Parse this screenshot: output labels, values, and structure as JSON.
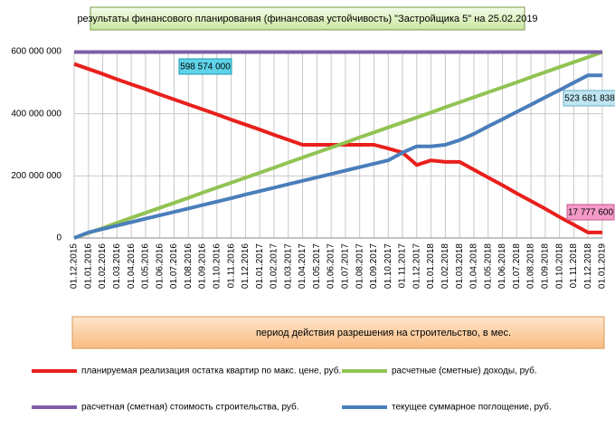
{
  "chart_data": {
    "type": "line",
    "title": "результаты финансового планирования  (финансовая устойчивость) \"Застройщика  5\" на 25.02.2019",
    "x_label": "период  действия разрешения на строительство, в мес.",
    "categories": [
      "01.12.2015",
      "01.01.2016",
      "01.02.2016",
      "01.03.2016",
      "01.04.2016",
      "01.05.2016",
      "01.06.2016",
      "01.07.2016",
      "01.08.2016",
      "01.09.2016",
      "01.10.2016",
      "01.11.2016",
      "01.12.2016",
      "01.01.2017",
      "01.02.2017",
      "01.03.2017",
      "01.04.2017",
      "01.05.2017",
      "01.06.2017",
      "01.07.2017",
      "01.08.2017",
      "01.09.2017",
      "01.10.2017",
      "01.11.2017",
      "01.12.2017",
      "01.01.2018",
      "01.02.2018",
      "01.03.2018",
      "01.04.2018",
      "01.05.2018",
      "01.06.2018",
      "01.07.2018",
      "01.08.2018",
      "01.09.2018",
      "01.10.2018",
      "01.11.2018",
      "01.12.2018",
      "01.01.2019"
    ],
    "ylim": [
      0,
      600000000
    ],
    "yticks": [
      0,
      {
        "value": 200000000,
        "label": "200 000 000"
      },
      {
        "value": 400000000,
        "label": "400 000 000"
      },
      {
        "value": 600000000,
        "label": "600 000 000"
      }
    ],
    "grid": true,
    "series": [
      {
        "name": "планируемая реализация остатка квартир по макс. цене, руб.",
        "color": "#e8201c",
        "values": [
          560000000,
          544000000,
          528000000,
          511000000,
          495000000,
          479000000,
          462000000,
          446000000,
          430000000,
          414000000,
          398000000,
          381000000,
          365000000,
          349000000,
          332000000,
          316000000,
          300000000,
          300000000,
          300000000,
          300000000,
          300000000,
          300000000,
          288000000,
          275000000,
          235000000,
          250000000,
          245000000,
          245000000,
          220000000,
          195000000,
          170000000,
          144000000,
          119000000,
          94000000,
          68000000,
          43000000,
          17777600,
          17777600
        ]
      },
      {
        "name": "расчетные (сметные) доходы, руб.",
        "color": "#92c353",
        "values": [
          0,
          16000000,
          32000000,
          49000000,
          65000000,
          81000000,
          97000000,
          113000000,
          129000000,
          146000000,
          162000000,
          178000000,
          194000000,
          210000000,
          226000000,
          243000000,
          259000000,
          275000000,
          291000000,
          307000000,
          324000000,
          340000000,
          356000000,
          372000000,
          388000000,
          404000000,
          421000000,
          437000000,
          453000000,
          469000000,
          485000000,
          501000000,
          518000000,
          534000000,
          550000000,
          566000000,
          582000000,
          598574000
        ]
      },
      {
        "name": "расчетная (сметная) стоимость строительства, руб.",
        "color": "#7e5ea8",
        "values": [
          598574000,
          598574000,
          598574000,
          598574000,
          598574000,
          598574000,
          598574000,
          598574000,
          598574000,
          598574000,
          598574000,
          598574000,
          598574000,
          598574000,
          598574000,
          598574000,
          598574000,
          598574000,
          598574000,
          598574000,
          598574000,
          598574000,
          598574000,
          598574000,
          598574000,
          598574000,
          598574000,
          598574000,
          598574000,
          598574000,
          598574000,
          598574000,
          598574000,
          598574000,
          598574000,
          598574000,
          598574000,
          598574000
        ]
      },
      {
        "name": "текущее суммарное поглощение, руб.",
        "color": "#4a7ebb",
        "values": [
          0,
          18000000,
          29000000,
          40000000,
          51000000,
          62000000,
          73000000,
          84000000,
          95000000,
          106000000,
          117000000,
          128000000,
          140000000,
          151000000,
          162000000,
          173000000,
          184000000,
          195000000,
          206000000,
          217000000,
          228000000,
          239000000,
          250000000,
          275000000,
          295000000,
          295000000,
          300000000,
          315000000,
          335000000,
          359000000,
          382000000,
          406000000,
          429000000,
          453000000,
          476000000,
          500000000,
          523681838,
          523681838
        ]
      }
    ],
    "annotations": [
      "598 574 000",
      "523 681 838",
      "17 777 600"
    ]
  }
}
